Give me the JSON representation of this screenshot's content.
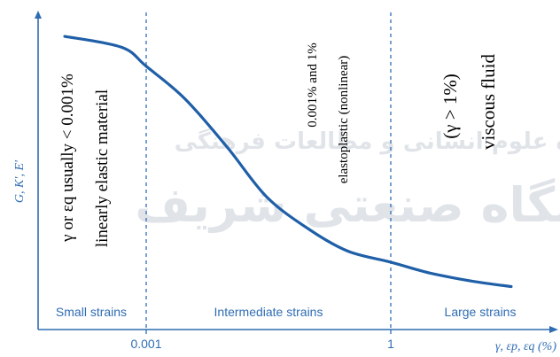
{
  "axes": {
    "y_label": "G, K′, E′",
    "x_label": "γ, εp, εq (%)",
    "x_ticks": [
      "0.001",
      "1"
    ]
  },
  "regions": [
    {
      "label": "Small strains"
    },
    {
      "label": "Intermediate strains"
    },
    {
      "label": "Large strains"
    }
  ],
  "annotations": {
    "small_line1": "γ or εq usually < 0.001%",
    "small_line2": "linearly elastic material",
    "mid_line1": "0.001% and 1%",
    "mid_line2": "elastoplastic (nonlinear)",
    "large_line1": "(γ > 1%)",
    "large_line2": "viscous fluid"
  },
  "watermark": {
    "line1": "ژوهشگاه علوم انسانی و مطالعات فرهنگی",
    "line2": "دانشگاه صنعتی شریف"
  },
  "colors": {
    "axis": "#2f6db3",
    "curve": "#1f5fa8",
    "divider": "#2f6db3",
    "text": "#000000"
  },
  "chart_data": {
    "type": "line",
    "title": "",
    "xlabel": "γ, εp, εq (%)",
    "ylabel": "G, K′, E′",
    "x_scale": "log",
    "x_ticks": [
      0.001,
      1
    ],
    "region_boundaries": [
      0.001,
      1
    ],
    "series": [
      {
        "x": [
          2e-05,
          0.0001,
          0.0005,
          0.001,
          0.003,
          0.01,
          0.03,
          0.1,
          0.3,
          1,
          3,
          10,
          30
        ],
        "y": [
          1.0,
          0.99,
          0.95,
          0.88,
          0.76,
          0.58,
          0.4,
          0.28,
          0.2,
          0.16,
          0.12,
          0.09,
          0.07
        ]
      }
    ]
  }
}
